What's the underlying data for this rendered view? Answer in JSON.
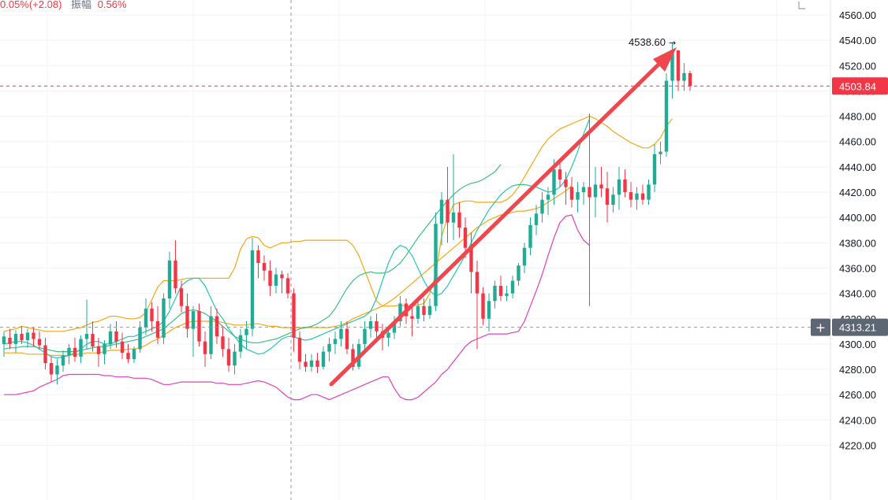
{
  "header": {
    "change_text": "0.05%(+2.08)",
    "amplitude_label": "振幅",
    "amplitude_value": "0.56%"
  },
  "toolbar": {
    "icon": "fullscreen-icon"
  },
  "colors": {
    "up": "#22ab94",
    "down": "#f23645",
    "ma_teal": "#26c6b0",
    "ma_green": "#3fbf7f",
    "ma_orange": "#f3a712",
    "boll": "#f3a712",
    "boll_lower": "#e040b8",
    "arrow": "#f0474f",
    "last_price_bg": "#f23645",
    "crosshair_bg": "#5d6673"
  },
  "price_axis": {
    "ticks": [
      "4560.00",
      "4540.00",
      "4520.00",
      "4500.00",
      "4480.00",
      "4460.00",
      "4440.00",
      "4420.00",
      "4400.00",
      "4380.00",
      "4360.00",
      "4340.00",
      "4320.00",
      "4300.00",
      "4280.00",
      "4260.00",
      "4240.00",
      "4220.00"
    ],
    "last_price_label": "4503.84",
    "crosshair_price_label": "4313.21",
    "crosshair_plus": "+"
  },
  "annotations": {
    "high_label": "4538.60",
    "high_arrow": "→"
  },
  "chart_data": {
    "type": "candlestick",
    "title": "",
    "ylim": [
      4210,
      4570
    ],
    "yticks": [
      4560,
      4540,
      4520,
      4500,
      4480,
      4460,
      4440,
      4420,
      4400,
      4380,
      4360,
      4340,
      4320,
      4300,
      4280,
      4260,
      4240,
      4220
    ],
    "last_price": 4503.84,
    "crosshair_price": 4313.21,
    "high": 4538.6,
    "grid": true,
    "candles": [
      {
        "o": 4300,
        "h": 4310,
        "l": 4290,
        "c": 4306
      },
      {
        "o": 4305,
        "h": 4312,
        "l": 4296,
        "c": 4300
      },
      {
        "o": 4300,
        "h": 4311,
        "l": 4293,
        "c": 4308
      },
      {
        "o": 4308,
        "h": 4314,
        "l": 4300,
        "c": 4303
      },
      {
        "o": 4303,
        "h": 4312,
        "l": 4297,
        "c": 4309
      },
      {
        "o": 4309,
        "h": 4313,
        "l": 4298,
        "c": 4304
      },
      {
        "o": 4304,
        "h": 4310,
        "l": 4296,
        "c": 4299
      },
      {
        "o": 4299,
        "h": 4305,
        "l": 4280,
        "c": 4285
      },
      {
        "o": 4285,
        "h": 4290,
        "l": 4270,
        "c": 4276
      },
      {
        "o": 4276,
        "h": 4288,
        "l": 4268,
        "c": 4283
      },
      {
        "o": 4283,
        "h": 4295,
        "l": 4278,
        "c": 4291
      },
      {
        "o": 4291,
        "h": 4300,
        "l": 4284,
        "c": 4297
      },
      {
        "o": 4297,
        "h": 4305,
        "l": 4286,
        "c": 4290
      },
      {
        "o": 4290,
        "h": 4307,
        "l": 4285,
        "c": 4304
      },
      {
        "o": 4304,
        "h": 4335,
        "l": 4296,
        "c": 4308
      },
      {
        "o": 4308,
        "h": 4318,
        "l": 4294,
        "c": 4298
      },
      {
        "o": 4298,
        "h": 4305,
        "l": 4282,
        "c": 4292
      },
      {
        "o": 4292,
        "h": 4303,
        "l": 4284,
        "c": 4300
      },
      {
        "o": 4300,
        "h": 4316,
        "l": 4296,
        "c": 4310
      },
      {
        "o": 4310,
        "h": 4318,
        "l": 4297,
        "c": 4302
      },
      {
        "o": 4302,
        "h": 4309,
        "l": 4288,
        "c": 4293
      },
      {
        "o": 4293,
        "h": 4300,
        "l": 4285,
        "c": 4288
      },
      {
        "o": 4288,
        "h": 4298,
        "l": 4285,
        "c": 4296
      },
      {
        "o": 4296,
        "h": 4318,
        "l": 4293,
        "c": 4313
      },
      {
        "o": 4313,
        "h": 4336,
        "l": 4307,
        "c": 4328
      },
      {
        "o": 4328,
        "h": 4333,
        "l": 4310,
        "c": 4318
      },
      {
        "o": 4318,
        "h": 4330,
        "l": 4300,
        "c": 4305
      },
      {
        "o": 4305,
        "h": 4340,
        "l": 4300,
        "c": 4336
      },
      {
        "o": 4336,
        "h": 4373,
        "l": 4328,
        "c": 4366
      },
      {
        "o": 4366,
        "h": 4382,
        "l": 4340,
        "c": 4344
      },
      {
        "o": 4344,
        "h": 4350,
        "l": 4325,
        "c": 4330
      },
      {
        "o": 4330,
        "h": 4340,
        "l": 4305,
        "c": 4312
      },
      {
        "o": 4312,
        "h": 4330,
        "l": 4290,
        "c": 4326
      },
      {
        "o": 4326,
        "h": 4332,
        "l": 4298,
        "c": 4302
      },
      {
        "o": 4302,
        "h": 4310,
        "l": 4282,
        "c": 4292
      },
      {
        "o": 4292,
        "h": 4330,
        "l": 4288,
        "c": 4322
      },
      {
        "o": 4322,
        "h": 4328,
        "l": 4300,
        "c": 4306
      },
      {
        "o": 4306,
        "h": 4314,
        "l": 4290,
        "c": 4296
      },
      {
        "o": 4296,
        "h": 4305,
        "l": 4278,
        "c": 4283
      },
      {
        "o": 4283,
        "h": 4300,
        "l": 4276,
        "c": 4294
      },
      {
        "o": 4294,
        "h": 4312,
        "l": 4289,
        "c": 4307
      },
      {
        "o": 4307,
        "h": 4318,
        "l": 4296,
        "c": 4312
      },
      {
        "o": 4312,
        "h": 4384,
        "l": 4306,
        "c": 4374
      },
      {
        "o": 4374,
        "h": 4378,
        "l": 4352,
        "c": 4364
      },
      {
        "o": 4364,
        "h": 4370,
        "l": 4350,
        "c": 4358
      },
      {
        "o": 4358,
        "h": 4366,
        "l": 4338,
        "c": 4346
      },
      {
        "o": 4346,
        "h": 4360,
        "l": 4340,
        "c": 4355
      },
      {
        "o": 4355,
        "h": 4358,
        "l": 4340,
        "c": 4352
      },
      {
        "o": 4352,
        "h": 4356,
        "l": 4336,
        "c": 4340
      },
      {
        "o": 4340,
        "h": 4344,
        "l": 4294,
        "c": 4305
      },
      {
        "o": 4305,
        "h": 4310,
        "l": 4280,
        "c": 4286
      },
      {
        "o": 4286,
        "h": 4292,
        "l": 4278,
        "c": 4282
      },
      {
        "o": 4282,
        "h": 4292,
        "l": 4278,
        "c": 4287
      },
      {
        "o": 4287,
        "h": 4293,
        "l": 4277,
        "c": 4282
      },
      {
        "o": 4282,
        "h": 4298,
        "l": 4280,
        "c": 4294
      },
      {
        "o": 4294,
        "h": 4305,
        "l": 4286,
        "c": 4300
      },
      {
        "o": 4300,
        "h": 4310,
        "l": 4292,
        "c": 4304
      },
      {
        "o": 4304,
        "h": 4318,
        "l": 4298,
        "c": 4312
      },
      {
        "o": 4312,
        "h": 4318,
        "l": 4292,
        "c": 4296
      },
      {
        "o": 4296,
        "h": 4300,
        "l": 4279,
        "c": 4282
      },
      {
        "o": 4282,
        "h": 4304,
        "l": 4280,
        "c": 4300
      },
      {
        "o": 4300,
        "h": 4318,
        "l": 4296,
        "c": 4312
      },
      {
        "o": 4312,
        "h": 4322,
        "l": 4305,
        "c": 4318
      },
      {
        "o": 4318,
        "h": 4324,
        "l": 4305,
        "c": 4310
      },
      {
        "o": 4310,
        "h": 4316,
        "l": 4295,
        "c": 4305
      },
      {
        "o": 4305,
        "h": 4312,
        "l": 4298,
        "c": 4309
      },
      {
        "o": 4309,
        "h": 4322,
        "l": 4304,
        "c": 4318
      },
      {
        "o": 4318,
        "h": 4338,
        "l": 4314,
        "c": 4332
      },
      {
        "o": 4332,
        "h": 4336,
        "l": 4316,
        "c": 4322
      },
      {
        "o": 4322,
        "h": 4330,
        "l": 4306,
        "c": 4320
      },
      {
        "o": 4320,
        "h": 4334,
        "l": 4316,
        "c": 4330
      },
      {
        "o": 4330,
        "h": 4336,
        "l": 4318,
        "c": 4323
      },
      {
        "o": 4323,
        "h": 4336,
        "l": 4320,
        "c": 4330
      },
      {
        "o": 4330,
        "h": 4404,
        "l": 4326,
        "c": 4395
      },
      {
        "o": 4395,
        "h": 4420,
        "l": 4378,
        "c": 4414
      },
      {
        "o": 4414,
        "h": 4440,
        "l": 4380,
        "c": 4396
      },
      {
        "o": 4396,
        "h": 4450,
        "l": 4382,
        "c": 4404
      },
      {
        "o": 4404,
        "h": 4412,
        "l": 4384,
        "c": 4392
      },
      {
        "o": 4392,
        "h": 4400,
        "l": 4368,
        "c": 4376
      },
      {
        "o": 4376,
        "h": 4388,
        "l": 4340,
        "c": 4357
      },
      {
        "o": 4357,
        "h": 4366,
        "l": 4296,
        "c": 4340
      },
      {
        "o": 4340,
        "h": 4345,
        "l": 4315,
        "c": 4320
      },
      {
        "o": 4320,
        "h": 4340,
        "l": 4310,
        "c": 4334
      },
      {
        "o": 4334,
        "h": 4350,
        "l": 4328,
        "c": 4346
      },
      {
        "o": 4346,
        "h": 4354,
        "l": 4334,
        "c": 4338
      },
      {
        "o": 4338,
        "h": 4346,
        "l": 4334,
        "c": 4340
      },
      {
        "o": 4340,
        "h": 4354,
        "l": 4336,
        "c": 4350
      },
      {
        "o": 4350,
        "h": 4364,
        "l": 4346,
        "c": 4362
      },
      {
        "o": 4362,
        "h": 4380,
        "l": 4356,
        "c": 4376
      },
      {
        "o": 4376,
        "h": 4400,
        "l": 4370,
        "c": 4394
      },
      {
        "o": 4394,
        "h": 4410,
        "l": 4386,
        "c": 4403
      },
      {
        "o": 4403,
        "h": 4420,
        "l": 4396,
        "c": 4414
      },
      {
        "o": 4414,
        "h": 4424,
        "l": 4402,
        "c": 4418
      },
      {
        "o": 4418,
        "h": 4446,
        "l": 4410,
        "c": 4438
      },
      {
        "o": 4438,
        "h": 4446,
        "l": 4424,
        "c": 4430
      },
      {
        "o": 4430,
        "h": 4436,
        "l": 4410,
        "c": 4424
      },
      {
        "o": 4424,
        "h": 4432,
        "l": 4408,
        "c": 4414
      },
      {
        "o": 4414,
        "h": 4428,
        "l": 4404,
        "c": 4420
      },
      {
        "o": 4420,
        "h": 4428,
        "l": 4410,
        "c": 4424
      },
      {
        "o": 4424,
        "h": 4482,
        "l": 4330,
        "c": 4416
      },
      {
        "o": 4416,
        "h": 4440,
        "l": 4400,
        "c": 4426
      },
      {
        "o": 4426,
        "h": 4440,
        "l": 4416,
        "c": 4423
      },
      {
        "o": 4423,
        "h": 4436,
        "l": 4396,
        "c": 4410
      },
      {
        "o": 4410,
        "h": 4424,
        "l": 4404,
        "c": 4418
      },
      {
        "o": 4418,
        "h": 4440,
        "l": 4406,
        "c": 4430
      },
      {
        "o": 4430,
        "h": 4438,
        "l": 4416,
        "c": 4420
      },
      {
        "o": 4420,
        "h": 4428,
        "l": 4408,
        "c": 4414
      },
      {
        "o": 4414,
        "h": 4424,
        "l": 4406,
        "c": 4419
      },
      {
        "o": 4419,
        "h": 4426,
        "l": 4410,
        "c": 4414
      },
      {
        "o": 4414,
        "h": 4430,
        "l": 4410,
        "c": 4426
      },
      {
        "o": 4426,
        "h": 4458,
        "l": 4420,
        "c": 4450
      },
      {
        "o": 4450,
        "h": 4460,
        "l": 4442,
        "c": 4452
      },
      {
        "o": 4452,
        "h": 4514,
        "l": 4448,
        "c": 4508
      },
      {
        "o": 4508,
        "h": 4538.6,
        "l": 4494,
        "c": 4532
      },
      {
        "o": 4532,
        "h": 4532,
        "l": 4500,
        "c": 4508
      },
      {
        "o": 4508,
        "h": 4522,
        "l": 4500,
        "c": 4514
      },
      {
        "o": 4514,
        "h": 4516,
        "l": 4500,
        "c": 4503.84
      }
    ],
    "boll_upper": [
      4310,
      4311,
      4312,
      4314,
      4313,
      4312,
      4311,
      4310,
      4310,
      4310,
      4310,
      4311,
      4312,
      4313,
      4315,
      4317,
      4318,
      4320,
      4322,
      4322,
      4321,
      4320,
      4320,
      4321,
      4325,
      4335,
      4345,
      4350,
      4350,
      4350,
      4351,
      4352,
      4352,
      4352,
      4352,
      4352,
      4352,
      4352,
      4352,
      4360,
      4375,
      4383,
      4385,
      4384,
      4378,
      4376,
      4378,
      4380,
      4380,
      4381,
      4381,
      4382,
      4382,
      4382,
      4382,
      4382,
      4382,
      4382,
      4382,
      4378,
      4370,
      4358,
      4346,
      4334,
      4330,
      4330,
      4330,
      4331,
      4330,
      4330,
      4331,
      4332,
      4340,
      4355,
      4385,
      4400,
      4410,
      4412,
      4413,
      4413,
      4412,
      4412,
      4412,
      4412,
      4412,
      4414,
      4418,
      4424,
      4432,
      4440,
      4448,
      4456,
      4462,
      4466,
      4470,
      4472,
      4474,
      4476,
      4478,
      4480,
      4478,
      4475,
      4472,
      4468,
      4465,
      4462,
      4459,
      4457,
      4455,
      4455,
      4458,
      4463,
      4472,
      4478
    ],
    "boll_middle": [
      4293,
      4293,
      4293,
      4293,
      4292,
      4292,
      4292,
      4292,
      4291,
      4291,
      4291,
      4291,
      4292,
      4292,
      4293,
      4293,
      4293,
      4294,
      4295,
      4295,
      4295,
      4296,
      4296,
      4297,
      4299,
      4302,
      4304,
      4307,
      4310,
      4313,
      4315,
      4317,
      4318,
      4318,
      4318,
      4318,
      4318,
      4317,
      4316,
      4315,
      4315,
      4315,
      4316,
      4316,
      4315,
      4314,
      4314,
      4313,
      4313,
      4313,
      4313,
      4313,
      4313,
      4313,
      4313,
      4313,
      4314,
      4315,
      4317,
      4320,
      4322,
      4324,
      4326,
      4328,
      4330,
      4333,
      4336,
      4340,
      4344,
      4348,
      4352,
      4356,
      4360,
      4364,
      4368,
      4372,
      4376,
      4380,
      4384,
      4388,
      4392,
      4395,
      4398,
      4400,
      4402,
      4403,
      4404,
      4405,
      4405,
      4406,
      4407,
      4409,
      4412,
      4415,
      4418,
      4421,
      4425
    ],
    "boll_lower": [
      4260,
      4260,
      4260,
      4261,
      4262,
      4263,
      4266,
      4268,
      4270,
      4272,
      4275,
      4276,
      4276,
      4276,
      4276,
      4276,
      4276,
      4275,
      4275,
      4274,
      4274,
      4274,
      4273,
      4273,
      4273,
      4272,
      4270,
      4268,
      4268,
      4269,
      4270,
      4270,
      4270,
      4270,
      4270,
      4270,
      4269,
      4269,
      4268,
      4268,
      4268,
      4269,
      4270,
      4271,
      4270,
      4268,
      4266,
      4262,
      4258,
      4256,
      4256,
      4258,
      4260,
      4260,
      4258,
      4256,
      4258,
      4260,
      4262,
      4264,
      4266,
      4268,
      4270,
      4272,
      4274,
      4274,
      4265,
      4258,
      4256,
      4256,
      4258,
      4262,
      4266,
      4270,
      4276,
      4280,
      4286,
      4292,
      4298,
      4302,
      4304,
      4306,
      4308,
      4308,
      4308,
      4308,
      4309,
      4310,
      4318,
      4330,
      4342,
      4355,
      4370,
      4384,
      4396,
      4401,
      4402,
      4390,
      4382,
      4378
    ],
    "ma_teal": [
      4300,
      4301,
      4302,
      4302,
      4301,
      4299,
      4296,
      4293,
      4290,
      4289,
      4290,
      4291,
      4293,
      4296,
      4300,
      4302,
      4302,
      4300,
      4300,
      4302,
      4304,
      4306,
      4306,
      4308,
      4310,
      4312,
      4314,
      4318,
      4326,
      4336,
      4346,
      4350,
      4352,
      4352,
      4346,
      4336,
      4326,
      4320,
      4312,
      4306,
      4300,
      4296,
      4294,
      4292,
      4293,
      4296,
      4300,
      4304,
      4306,
      4306,
      4304,
      4303,
      4304,
      4306,
      4308,
      4310,
      4312,
      4314,
      4316,
      4318,
      4320,
      4322,
      4326,
      4336,
      4350,
      4364,
      4374,
      4378,
      4376,
      4370,
      4360,
      4350,
      4342,
      4338,
      4340,
      4346,
      4354,
      4362,
      4370,
      4380,
      4390,
      4398,
      4406,
      4412,
      4418,
      4422,
      4425,
      4426,
      4426,
      4425,
      4424,
      4422,
      4420,
      4421,
      4424,
      4430,
      4440,
      4452,
      4466,
      4478
    ],
    "ma_green": [
      4296,
      4297,
      4297,
      4298,
      4298,
      4298,
      4297,
      4296,
      4295,
      4294,
      4294,
      4294,
      4294,
      4295,
      4296,
      4297,
      4298,
      4298,
      4299,
      4300,
      4301,
      4302,
      4303,
      4304,
      4306,
      4308,
      4310,
      4312,
      4316,
      4320,
      4324,
      4326,
      4327,
      4326,
      4324,
      4321,
      4318,
      4314,
      4310,
      4306,
      4304,
      4302,
      4301,
      4301,
      4302,
      4303,
      4304,
      4306,
      4308,
      4310,
      4312,
      4313,
      4314,
      4316,
      4319,
      4322,
      4328,
      4336,
      4344,
      4350,
      4354,
      4356,
      4357,
      4356,
      4356,
      4357,
      4360,
      4364,
      4370,
      4377,
      4384,
      4390,
      4396,
      4402,
      4408,
      4413,
      4418,
      4422,
      4425,
      4427,
      4428,
      4430,
      4433,
      4436,
      4442
    ]
  }
}
